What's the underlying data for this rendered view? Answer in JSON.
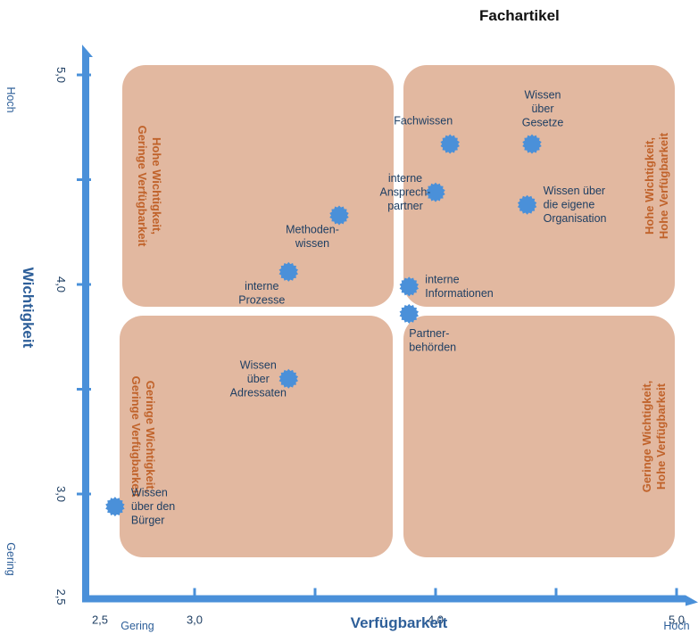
{
  "header": {
    "label": "Fachartikel"
  },
  "chart_data": {
    "type": "scatter",
    "xlabel": "Verfügbarkeit",
    "ylabel": "Wichtigkeit",
    "xlim": [
      2.5,
      5.0
    ],
    "ylim": [
      2.5,
      5.0
    ],
    "x_ticks": [
      "2,5",
      "3,0",
      "4,0",
      "5,0"
    ],
    "y_ticks": [
      "5,0",
      "4,0",
      "3,0",
      "2,5"
    ],
    "x_end_labels": {
      "low": "Gering",
      "high": "Hoch"
    },
    "y_end_labels": {
      "low": "Gering",
      "high": "Hoch"
    },
    "quadrants": [
      {
        "name": "top-left",
        "lines": [
          "Hohe Wichtigkeit,",
          "Geringe Verfügbarkeit"
        ]
      },
      {
        "name": "top-right",
        "lines": [
          "Hohe Wichtigkeit,",
          "Hohe Verfügbarkeit"
        ]
      },
      {
        "name": "bottom-left",
        "lines": [
          "Geringe Wichtigkeit,",
          "Geringe Verfügbarkeit"
        ]
      },
      {
        "name": "bottom-right",
        "lines": [
          "Geringe Wichtigkeit,",
          "Hohe Verfügbarkeit"
        ]
      }
    ],
    "points": [
      {
        "lines": [
          "Fachwissen"
        ],
        "x": 4.06,
        "y": 4.67,
        "anchor": "above-left"
      },
      {
        "lines": [
          "Wissen",
          "über",
          "Gesetze"
        ],
        "x": 4.4,
        "y": 4.67,
        "anchor": "above"
      },
      {
        "lines": [
          "interne",
          "Ansprech-",
          "partner"
        ],
        "x": 4.0,
        "y": 4.44,
        "anchor": "left"
      },
      {
        "lines": [
          "Wissen über",
          "die eigene",
          "Organisation"
        ],
        "x": 4.38,
        "y": 4.38,
        "anchor": "right"
      },
      {
        "lines": [
          "Methoden-",
          "wissen"
        ],
        "x": 3.6,
        "y": 4.33,
        "anchor": "below-left"
      },
      {
        "lines": [
          "interne",
          "Prozesse"
        ],
        "x": 3.39,
        "y": 4.06,
        "anchor": "below-left"
      },
      {
        "lines": [
          "interne",
          "Informationen"
        ],
        "x": 3.89,
        "y": 3.99,
        "anchor": "right"
      },
      {
        "lines": [
          "Partner-",
          "behörden"
        ],
        "x": 3.89,
        "y": 3.86,
        "anchor": "below-right"
      },
      {
        "lines": [
          "Wissen",
          "über",
          "Adressaten"
        ],
        "x": 3.39,
        "y": 3.55,
        "anchor": "left"
      },
      {
        "lines": [
          "Wissen",
          "über den",
          "Bürger"
        ],
        "x": 2.67,
        "y": 2.94,
        "anchor": "right"
      }
    ],
    "colors": {
      "axis": "#4a90d9",
      "quadrant_fill": "#e2b8a0",
      "quadrant_text": "#c0622a",
      "point": "#4a90d9"
    }
  }
}
